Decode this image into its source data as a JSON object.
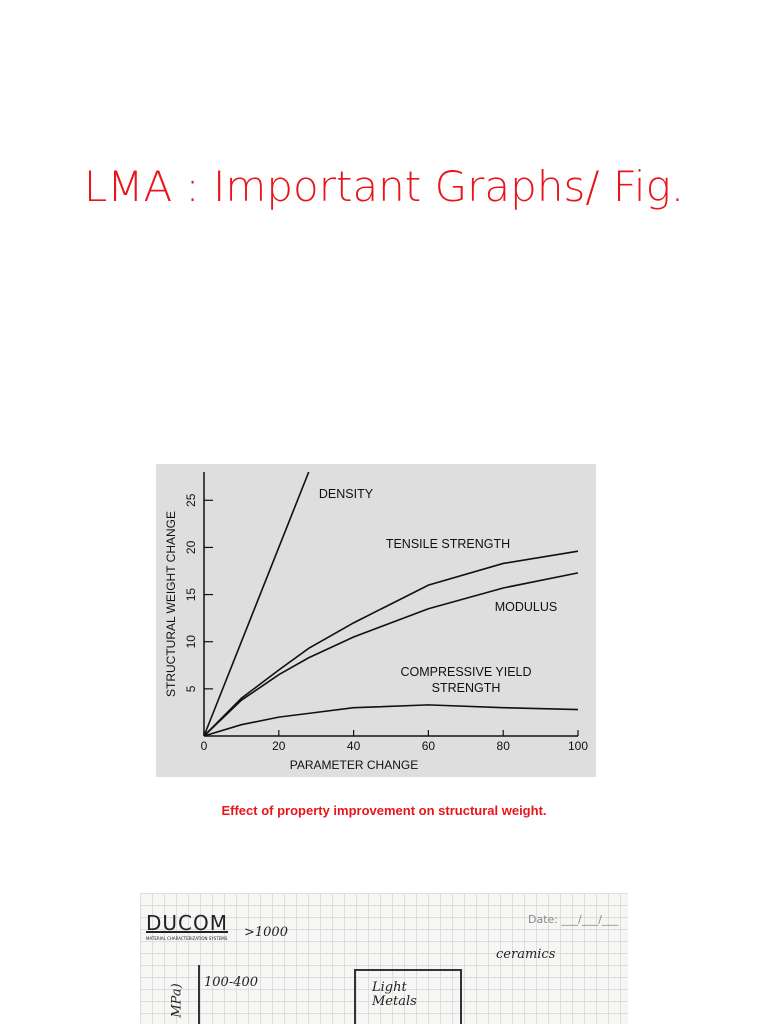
{
  "title": "LMA : Important Graphs/ Fig.",
  "chart_data": {
    "type": "line",
    "xlabel": "PARAMETER CHANGE",
    "ylabel": "STRUCTURAL WEIGHT CHANGE",
    "x": [
      0,
      10,
      20,
      28,
      40,
      60,
      80,
      100
    ],
    "series": [
      {
        "name": "DENSITY",
        "color": "#111111",
        "values": [
          0,
          10,
          20,
          28,
          null,
          null,
          null,
          null
        ]
      },
      {
        "name": "TENSILE STRENGTH",
        "color": "#111111",
        "values": [
          0,
          4,
          7,
          9.3,
          12,
          16,
          18.3,
          19.6
        ]
      },
      {
        "name": "MODULUS",
        "color": "#111111",
        "values": [
          0,
          3.8,
          6.5,
          8.3,
          10.5,
          13.5,
          15.7,
          17.3
        ]
      },
      {
        "name": "COMPRESSIVE YIELD STRENGTH",
        "color": "#111111",
        "values": [
          0,
          1.2,
          2,
          2.4,
          3,
          3.3,
          3,
          2.8
        ]
      }
    ],
    "xlim": [
      0,
      100
    ],
    "ylim": [
      0,
      28
    ],
    "xticks": [
      0,
      20,
      40,
      60,
      80,
      100
    ],
    "yticks": [
      5,
      10,
      15,
      20,
      25
    ]
  },
  "caption": "Effect of property improvement on structural weight.",
  "notebook": {
    "brand": "DUCOM",
    "brand_sub": "MATERIAL CHARACTERIZATION SYSTEMS",
    "date": "Date: ___/___/___",
    "notes": [
      ">1000",
      "ceramics",
      "100-400",
      "Light Metals",
      "MPa)"
    ]
  }
}
